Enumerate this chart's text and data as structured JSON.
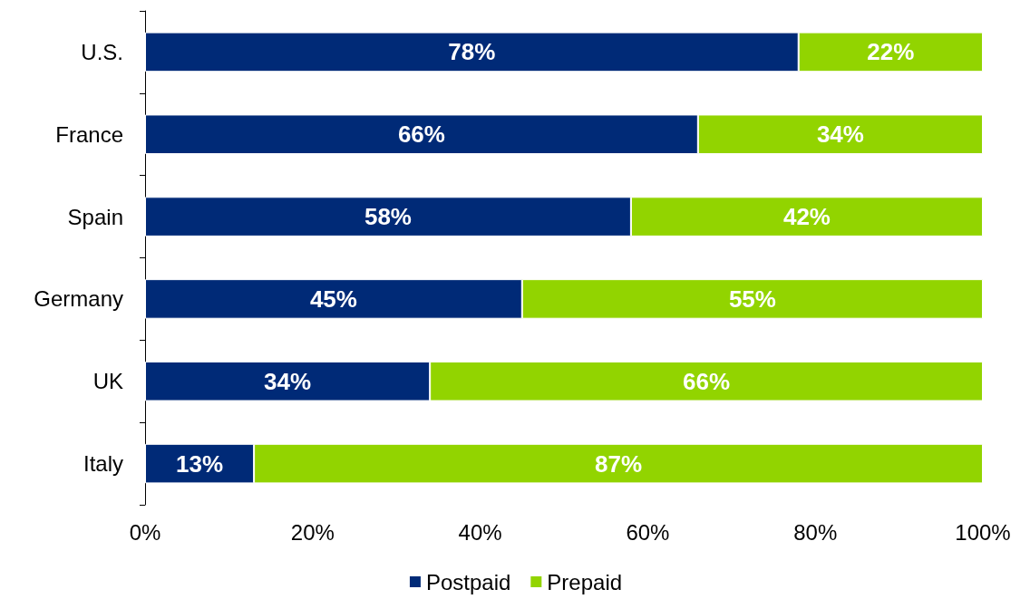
{
  "chart_data": {
    "type": "bar",
    "orientation": "horizontal",
    "stacked": true,
    "legend": "bottom",
    "grid": false,
    "categories": [
      "U.S.",
      "France",
      "Spain",
      "Germany",
      "UK",
      "Italy"
    ],
    "series": [
      {
        "name": "Postpaid",
        "color": "#002a77",
        "values": [
          78,
          66,
          58,
          45,
          34,
          13
        ],
        "value_labels": [
          "78%",
          "66%",
          "58%",
          "45%",
          "34%",
          "13%"
        ]
      },
      {
        "name": "Prepaid",
        "color": "#92d400",
        "values": [
          22,
          34,
          42,
          55,
          66,
          87
        ],
        "value_labels": [
          "22%",
          "34%",
          "42%",
          "55%",
          "66%",
          "87%"
        ]
      }
    ],
    "xlim": [
      0,
      100
    ],
    "xticks": [
      {
        "value": 0,
        "label": "0%"
      },
      {
        "value": 20,
        "label": "20%"
      },
      {
        "value": 40,
        "label": "40%"
      },
      {
        "value": 60,
        "label": "60%"
      },
      {
        "value": 80,
        "label": "80%"
      },
      {
        "value": 100,
        "label": "100%"
      }
    ]
  }
}
